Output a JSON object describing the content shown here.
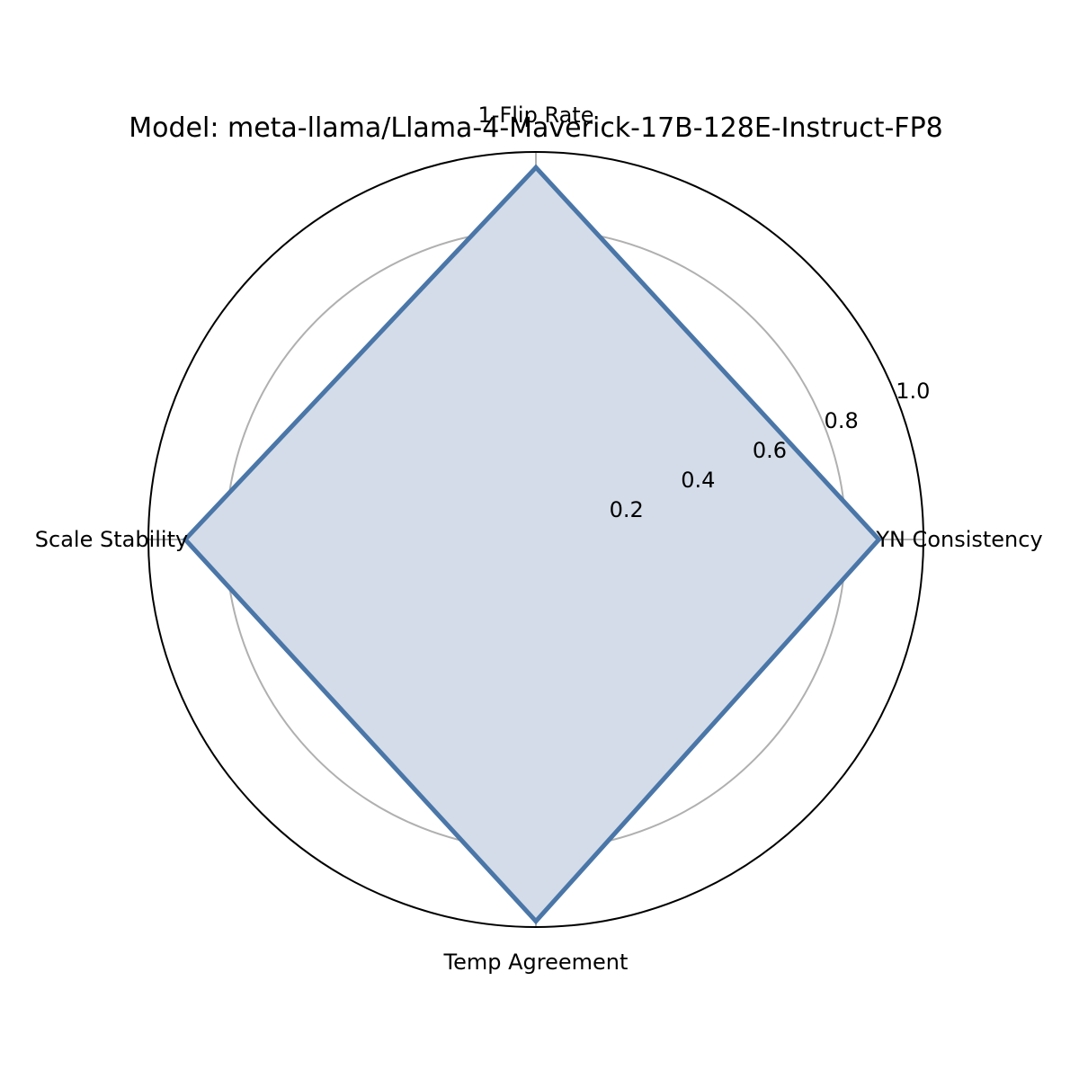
{
  "chart_data": {
    "type": "radar",
    "title": "Model: meta-llama/Llama-4-Maverick-17B-128E-Instruct-FP8",
    "axes": [
      "YN Consistency",
      "1-Flip Rate",
      "Scale Stability",
      "Temp Agreement"
    ],
    "series": [
      {
        "values": [
          0.885,
          0.96,
          0.905,
          0.985
        ],
        "color": "#4a76a8",
        "fill": "#d3dce8"
      }
    ],
    "rlim": [
      0,
      1.0
    ],
    "rticks": [
      0.2,
      0.4,
      0.6,
      0.8,
      1.0
    ],
    "rtick_labels": [
      "0.2",
      "0.4",
      "0.6",
      "0.8",
      "1.0"
    ],
    "grid": true,
    "grid_color": "#b0b0b0",
    "outer_ring_color": "#000000"
  }
}
